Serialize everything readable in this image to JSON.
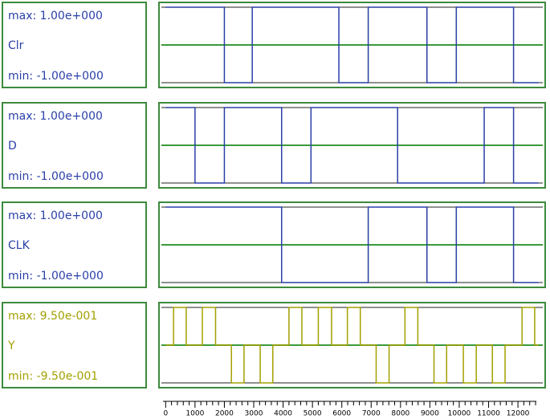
{
  "chart_data": [
    {
      "type": "line",
      "step": true,
      "max_label": "max: 1.00e+000",
      "min_label": "min: -1.00e+000",
      "ylim": [
        -1,
        1
      ],
      "xlim": [
        -200,
        12900
      ],
      "x": [
        0,
        2000,
        2950,
        5900,
        6900,
        8900,
        9900,
        11850,
        12700
      ],
      "series": [
        {
          "name": "Clr",
          "color": "#2a3fa8",
          "values": [
            1,
            -1,
            1,
            -1,
            1,
            -1,
            1,
            -1,
            -1
          ]
        }
      ]
    },
    {
      "type": "line",
      "step": true,
      "max_label": "max: 1.00e+000",
      "min_label": "min: -1.00e+000",
      "ylim": [
        -1,
        1
      ],
      "xlim": [
        -200,
        12900
      ],
      "x": [
        0,
        1000,
        2000,
        3950,
        4950,
        7900,
        10850,
        11850,
        12700
      ],
      "series": [
        {
          "name": "D",
          "color": "#2a3fa8",
          "values": [
            1,
            -1,
            1,
            -1,
            1,
            -1,
            1,
            -1,
            -1
          ]
        }
      ]
    },
    {
      "type": "line",
      "step": true,
      "max_label": "max: 1.00e+000",
      "min_label": "min: -1.00e+000",
      "ylim": [
        -1,
        1
      ],
      "xlim": [
        -200,
        12900
      ],
      "x": [
        0,
        3950,
        6900,
        8900,
        9900,
        11850,
        12700
      ],
      "series": [
        {
          "name": "CLK",
          "color": "#2a3fa8",
          "values": [
            1,
            -1,
            1,
            -1,
            1,
            -1,
            -1
          ]
        }
      ]
    },
    {
      "type": "line",
      "step": true,
      "max_label": "max: 9.50e-001",
      "min_label": "min: -9.50e-001",
      "ylim": [
        -0.95,
        0.95
      ],
      "xlim": [
        -200,
        12900
      ],
      "x": [
        0,
        270,
        700,
        1250,
        1700,
        2240,
        2670,
        3220,
        3650,
        4200,
        4640,
        5200,
        5650,
        6190,
        6630,
        7170,
        7610,
        8150,
        8590,
        9140,
        9570,
        10140,
        10580,
        11130,
        11560,
        12140,
        12570,
        12700
      ],
      "series": [
        {
          "name": "Y",
          "color": "#a3a000",
          "values": [
            0,
            0.95,
            0,
            0.95,
            0,
            -0.95,
            0,
            -0.95,
            0,
            0.95,
            0,
            0.95,
            0,
            0.95,
            0,
            -0.95,
            0,
            0.95,
            0,
            -0.95,
            0,
            -0.95,
            0,
            -0.95,
            0,
            0.95,
            0,
            0
          ]
        }
      ],
      "xticks": [
        0,
        1000,
        2000,
        3000,
        4000,
        5000,
        6000,
        7000,
        8000,
        9000,
        10000,
        11000,
        12000
      ]
    }
  ]
}
